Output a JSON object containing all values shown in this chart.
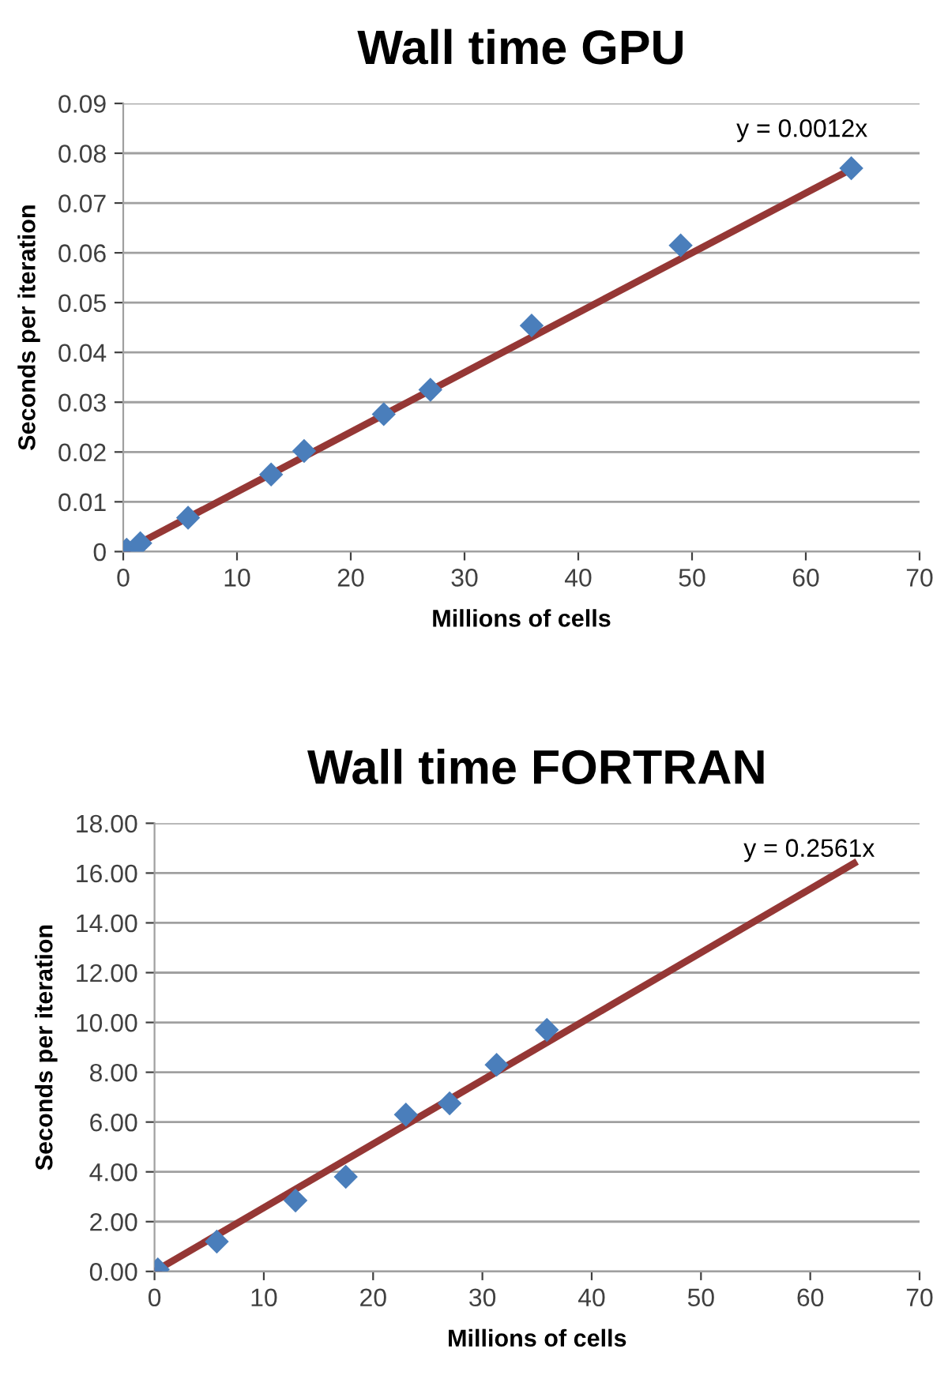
{
  "chart_data": [
    {
      "type": "scatter",
      "title": "Wall time GPU",
      "xlabel": "Millions of cells",
      "ylabel": "Seconds per iteration",
      "series": [
        {
          "color": "#4a7ebb",
          "marker": "diamond",
          "x": [
            0.3,
            1.5,
            5.7,
            13,
            15.9,
            22.9,
            27,
            35.9,
            49,
            64
          ],
          "values": [
            0.0004,
            0.0017,
            0.0068,
            0.0155,
            0.0202,
            0.0276,
            0.0325,
            0.0454,
            0.0615,
            0.077
          ]
        },
        {
          "type": "line",
          "color": "#953735",
          "line_style": "solid",
          "x": [
            0,
            64
          ],
          "values": [
            0,
            0.0768
          ]
        }
      ],
      "annotations": [
        "y = 0.0012x"
      ],
      "xlim": [
        0,
        70
      ],
      "xticks": [
        0,
        10,
        20,
        30,
        40,
        50,
        60,
        70
      ],
      "ylim": [
        0,
        0.09
      ],
      "yticks": [
        0,
        0.01,
        0.02,
        0.03,
        0.04,
        0.05,
        0.06,
        0.07,
        0.08,
        0.09
      ],
      "grid": "y",
      "legend": false
    },
    {
      "type": "scatter",
      "title": "Wall time FORTRAN",
      "xlabel": "Millions of cells",
      "ylabel": "Seconds per iteration",
      "series": [
        {
          "color": "#4a7ebb",
          "marker": "diamond",
          "x": [
            0.3,
            5.7,
            12.9,
            17.5,
            23,
            27,
            31.3,
            35.9
          ],
          "values": [
            0.08,
            1.2,
            2.85,
            3.8,
            6.3,
            6.75,
            8.3,
            9.7
          ]
        },
        {
          "type": "line",
          "color": "#953735",
          "line_style": "solid",
          "x": [
            0,
            64
          ],
          "values": [
            0,
            16.39
          ]
        }
      ],
      "annotations": [
        "y = 0.2561x"
      ],
      "xlim": [
        0,
        70
      ],
      "xticks": [
        0,
        10,
        20,
        30,
        40,
        50,
        60,
        70
      ],
      "ylim": [
        0,
        18
      ],
      "yticks": [
        {
          "value": 0,
          "label": "0.00"
        },
        {
          "value": 2,
          "label": "2.00"
        },
        {
          "value": 4,
          "label": "4.00"
        },
        {
          "value": 6,
          "label": "6.00"
        },
        {
          "value": 8,
          "label": "8.00"
        },
        {
          "value": 10,
          "label": "10.00"
        },
        {
          "value": 12,
          "label": "12.00"
        },
        {
          "value": 14,
          "label": "14.00"
        },
        {
          "value": 16,
          "label": "16.00"
        },
        {
          "value": 18,
          "label": "18.00"
        }
      ],
      "grid": "y",
      "legend": false
    }
  ]
}
